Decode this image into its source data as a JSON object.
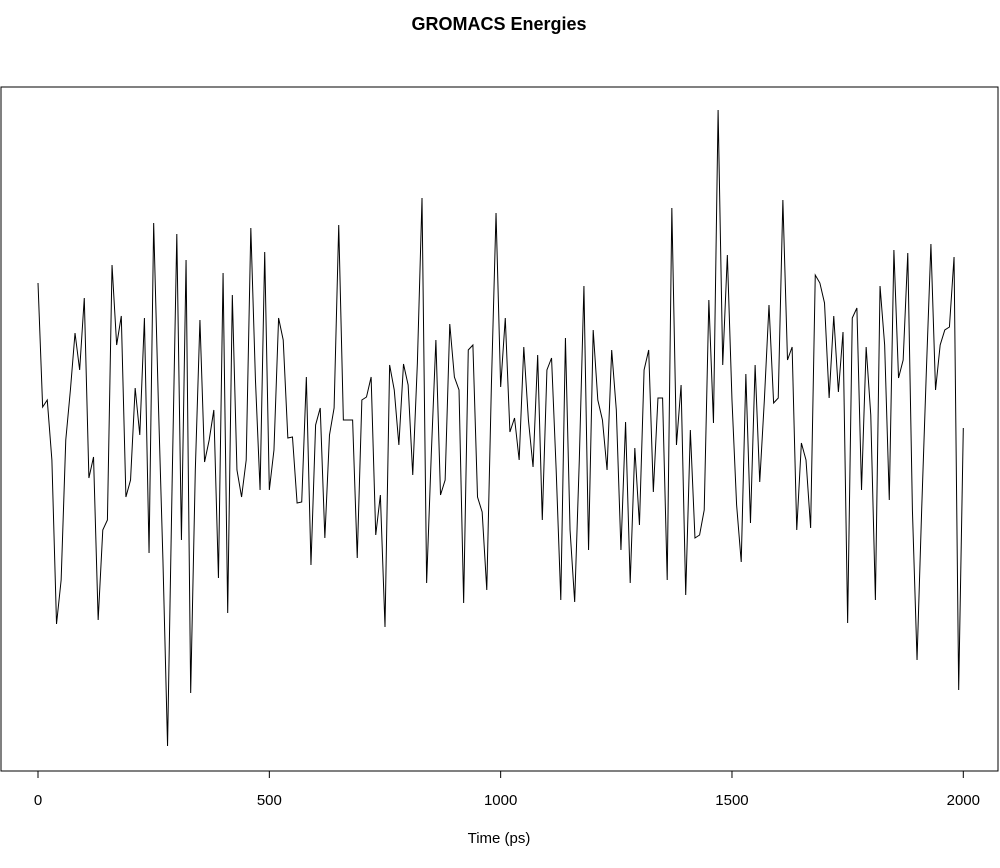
{
  "chart_data": {
    "type": "line",
    "title": "GROMACS Energies",
    "x_label": "Time (ps)",
    "x": [
      0,
      10,
      20,
      30,
      40,
      50,
      60,
      70,
      80,
      90,
      100,
      110,
      120,
      130,
      140,
      150,
      160,
      170,
      180,
      190,
      200,
      210,
      220,
      230,
      240,
      250,
      260,
      270,
      280,
      290,
      300,
      310,
      320,
      330,
      340,
      350,
      360,
      370,
      380,
      390,
      400,
      410,
      420,
      430,
      440,
      450,
      460,
      470,
      480,
      490,
      500,
      510,
      520,
      530,
      540,
      550,
      560,
      570,
      580,
      590,
      600,
      610,
      620,
      630,
      640,
      650,
      660,
      670,
      680,
      690,
      700,
      710,
      720,
      730,
      740,
      750,
      760,
      770,
      780,
      790,
      800,
      810,
      820,
      830,
      840,
      850,
      860,
      870,
      880,
      890,
      900,
      910,
      920,
      930,
      940,
      950,
      960,
      970,
      980,
      990,
      1000,
      1010,
      1020,
      1030,
      1040,
      1050,
      1060,
      1070,
      1080,
      1090,
      1100,
      1110,
      1120,
      1130,
      1140,
      1150,
      1160,
      1170,
      1180,
      1190,
      1200,
      1210,
      1220,
      1230,
      1240,
      1250,
      1260,
      1270,
      1280,
      1290,
      1300,
      1310,
      1320,
      1330,
      1340,
      1350,
      1360,
      1370,
      1380,
      1390,
      1400,
      1410,
      1420,
      1430,
      1440,
      1450,
      1460,
      1470,
      1480,
      1490,
      1500,
      1510,
      1520,
      1530,
      1540,
      1550,
      1560,
      1570,
      1580,
      1590,
      1600,
      1610,
      1620,
      1630,
      1640,
      1650,
      1660,
      1670,
      1680,
      1690,
      1700,
      1710,
      1720,
      1730,
      1740,
      1750,
      1760,
      1770,
      1780,
      1790,
      1800,
      1810,
      1820,
      1830,
      1840,
      1850,
      1860,
      1870,
      1880,
      1890,
      1900,
      1910,
      1920,
      1930,
      1940,
      1950,
      1960,
      1970,
      1980,
      1990,
      2000
    ],
    "values": [
      488,
      364,
      371,
      311,
      147,
      191,
      331,
      381,
      438,
      401,
      473,
      293,
      314,
      151,
      241,
      251,
      506,
      426,
      455,
      274,
      291,
      383,
      336,
      453,
      218,
      548,
      371,
      211,
      25,
      291,
      537,
      231,
      511,
      78,
      301,
      451,
      309,
      331,
      361,
      193,
      498,
      158,
      476,
      301,
      274,
      311,
      543,
      391,
      281,
      519,
      281,
      321,
      453,
      431,
      333,
      334,
      268,
      269,
      394,
      206,
      346,
      363,
      233,
      336,
      363,
      546,
      351,
      351,
      351,
      213,
      371,
      374,
      394,
      236,
      276,
      144,
      406,
      381,
      326,
      407,
      386,
      296,
      408,
      573,
      188,
      316,
      431,
      276,
      291,
      447,
      394,
      381,
      168,
      421,
      426,
      274,
      259,
      181,
      386,
      558,
      384,
      453,
      339,
      353,
      311,
      424,
      351,
      304,
      416,
      251,
      401,
      413,
      301,
      171,
      433,
      241,
      169,
      311,
      485,
      221,
      441,
      371,
      351,
      301,
      421,
      361,
      221,
      349,
      188,
      323,
      246,
      401,
      421,
      279,
      373,
      373,
      191,
      563,
      326,
      386,
      176,
      341,
      233,
      236,
      261,
      471,
      348,
      661,
      406,
      516,
      371,
      266,
      209,
      397,
      248,
      406,
      289,
      371,
      466,
      368,
      373,
      571,
      411,
      424,
      241,
      328,
      311,
      243,
      496,
      488,
      468,
      373,
      455,
      379,
      439,
      148,
      453,
      463,
      281,
      424,
      356,
      171,
      485,
      426,
      271,
      521,
      393,
      411,
      518,
      261,
      111,
      261,
      398,
      527,
      381,
      426,
      441,
      444,
      514,
      81,
      343
    ],
    "color": "#000000",
    "xlim": [
      -80,
      2075
    ],
    "xticks": [
      0,
      500,
      1000,
      1500,
      2000
    ],
    "ylim": [
      0,
      684
    ]
  }
}
